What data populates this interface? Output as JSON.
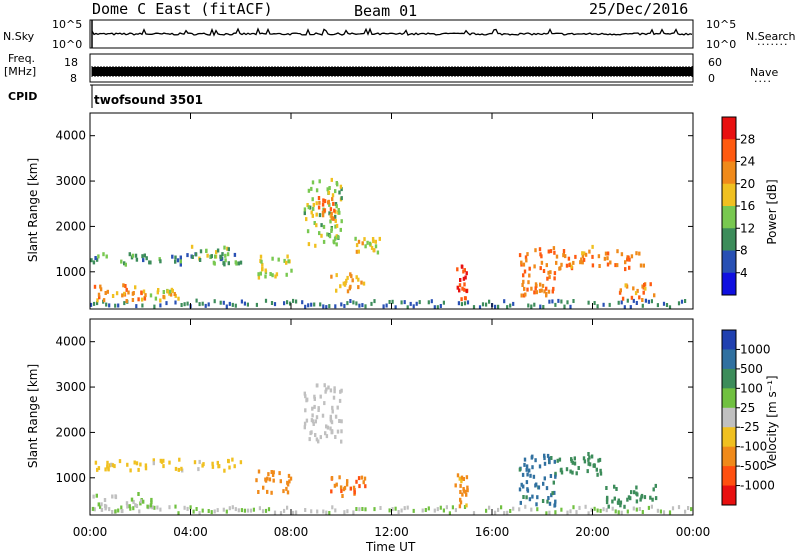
{
  "header": {
    "title": "Dome C East (fitACF)",
    "beam": "Beam 01",
    "date": "25/Dec/2016"
  },
  "top_panel": {
    "left_label": "N.Sky",
    "right_label": "N.Search",
    "left_ticks": [
      "10^5",
      "10^0"
    ],
    "right_ticks": [
      "10^5",
      "10^0"
    ]
  },
  "freq_panel": {
    "left_label_line1": "Freq.",
    "left_label_line2": "[MHz]",
    "left_ticks": [
      "18",
      "8"
    ],
    "right_label": "Nave",
    "right_ticks": [
      "60",
      "0"
    ]
  },
  "cpid": {
    "label": "CPID",
    "value": "twofsound 3501"
  },
  "power_panel": {
    "ylabel": "Slant Range [km]",
    "yticks": [
      "4000",
      "3000",
      "2000",
      "1000"
    ],
    "colorbar_label": "Power [dB]",
    "colorbar_ticks": [
      "28",
      "24",
      "20",
      "16",
      "12",
      "8",
      "4"
    ],
    "colorbar_colors": [
      "#e81010",
      "#ff5a10",
      "#f08a1a",
      "#f0c020",
      "#78c850",
      "#3c8c5a",
      "#2850b4",
      "#1010e0"
    ]
  },
  "velocity_panel": {
    "ylabel": "Slant Range [km]",
    "yticks": [
      "4000",
      "3000",
      "2000",
      "1000"
    ],
    "colorbar_label": "Velocity [m s⁻¹]",
    "colorbar_ticks": [
      "1000",
      "500",
      "100",
      "25",
      "-25",
      "-100",
      "-500",
      "-1000"
    ],
    "colorbar_colors": [
      "#2040b0",
      "#3070a0",
      "#3c8c5a",
      "#70c040",
      "#c0c0c0",
      "#f0c020",
      "#f08a1a",
      "#ff5010",
      "#e81010"
    ]
  },
  "x_axis": {
    "label": "Time UT",
    "ticks": [
      "00:00",
      "04:00",
      "08:00",
      "12:00",
      "16:00",
      "20:00",
      "00:00"
    ]
  },
  "chart_data": {
    "type": "heatmap",
    "title": "Dome C East (fitACF)",
    "x_range_hours": [
      0,
      24
    ],
    "y_range_km": [
      180,
      4500
    ],
    "grid": false,
    "power_regions_db": [
      {
        "t": [
          0.0,
          2.5
        ],
        "r": [
          400,
          750
        ],
        "value": 22
      },
      {
        "t": [
          2.0,
          3.5
        ],
        "r": [
          400,
          650
        ],
        "value": 18
      },
      {
        "t": [
          0.0,
          6.0
        ],
        "r": [
          1200,
          1450
        ],
        "value": 10
      },
      {
        "t": [
          4.0,
          5.5
        ],
        "r": [
          1300,
          1600
        ],
        "value": 14
      },
      {
        "t": [
          6.5,
          8.0
        ],
        "r": [
          900,
          1400
        ],
        "value": 16
      },
      {
        "t": [
          8.5,
          10.0
        ],
        "r": [
          1600,
          3100
        ],
        "value": 14
      },
      {
        "t": [
          9.0,
          9.7
        ],
        "r": [
          2200,
          2700
        ],
        "value": 24
      },
      {
        "t": [
          9.5,
          11.0
        ],
        "r": [
          600,
          1000
        ],
        "value": 20
      },
      {
        "t": [
          10.5,
          11.5
        ],
        "r": [
          1400,
          1800
        ],
        "value": 18
      },
      {
        "t": [
          14.5,
          15.0
        ],
        "r": [
          400,
          1200
        ],
        "value": 28
      },
      {
        "t": [
          17.0,
          18.5
        ],
        "r": [
          500,
          1600
        ],
        "value": 24
      },
      {
        "t": [
          18.5,
          20.5
        ],
        "r": [
          1100,
          1600
        ],
        "value": 22
      },
      {
        "t": [
          20.5,
          22.0
        ],
        "r": [
          1100,
          1500
        ],
        "value": 24
      },
      {
        "t": [
          21.0,
          22.5
        ],
        "r": [
          400,
          800
        ],
        "value": 22
      }
    ],
    "velocity_regions_ms": [
      {
        "t": [
          0.0,
          2.5
        ],
        "r": [
          300,
          700
        ],
        "value": 20
      },
      {
        "t": [
          0.0,
          6.0
        ],
        "r": [
          1200,
          1450
        ],
        "value": -50
      },
      {
        "t": [
          6.5,
          8.0
        ],
        "r": [
          700,
          1200
        ],
        "value": -300
      },
      {
        "t": [
          8.5,
          10.0
        ],
        "r": [
          1800,
          3100
        ],
        "value": 0
      },
      {
        "t": [
          9.5,
          11.0
        ],
        "r": [
          600,
          1100
        ],
        "value": -500
      },
      {
        "t": [
          14.5,
          15.0
        ],
        "r": [
          400,
          1100
        ],
        "value": -150
      },
      {
        "t": [
          17.0,
          18.5
        ],
        "r": [
          400,
          1600
        ],
        "value": 700
      },
      {
        "t": [
          18.5,
          20.5
        ],
        "r": [
          1100,
          1600
        ],
        "value": 200
      },
      {
        "t": [
          20.5,
          22.5
        ],
        "r": [
          400,
          900
        ],
        "value": 300
      }
    ]
  }
}
